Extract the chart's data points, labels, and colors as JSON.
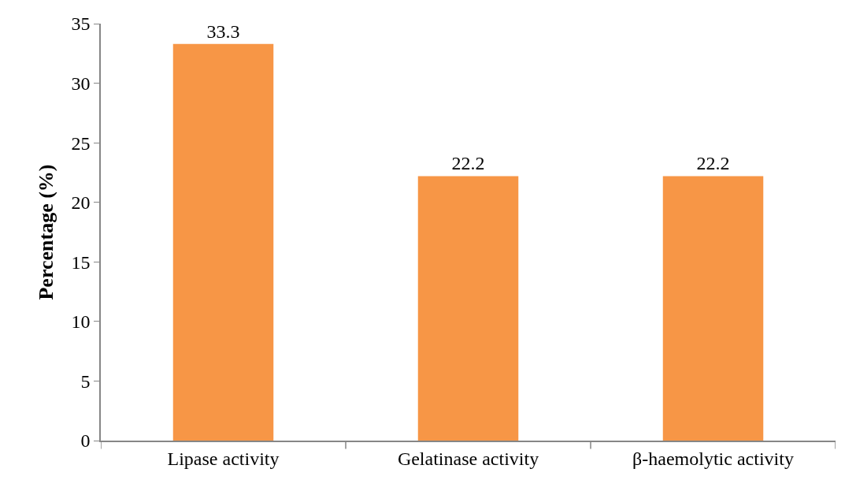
{
  "chart_data": {
    "type": "bar",
    "ylabel": "Percentage (%)",
    "categories": [
      "Lipase activity",
      "Gelatinase activity",
      "β-haemolytic activity"
    ],
    "values": [
      33.3,
      22.2,
      22.2
    ],
    "color": "#f79646",
    "ylim": [
      0,
      35
    ],
    "yticks": [
      0,
      5,
      10,
      15,
      20,
      25,
      30,
      35
    ],
    "data_labels": true
  }
}
